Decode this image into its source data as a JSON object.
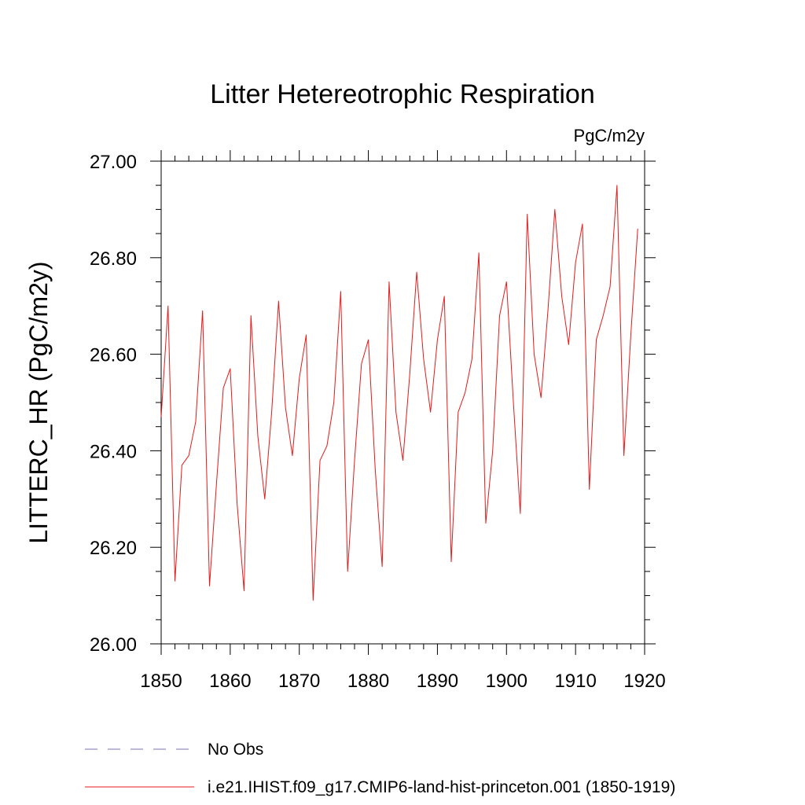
{
  "chart_data": {
    "type": "line",
    "title": "Litter Hetereotrophic Respiration",
    "units_label": "PgC/m2y",
    "ylabel": "LITTERC_HR  (PgC/m2y)",
    "xlabel": "",
    "xlim": [
      1850,
      1920
    ],
    "ylim": [
      26.0,
      27.0
    ],
    "x_ticks": [
      1850,
      1860,
      1870,
      1880,
      1890,
      1900,
      1910,
      1920
    ],
    "y_ticks": [
      "26.00",
      "26.20",
      "26.40",
      "26.60",
      "26.80",
      "27.00"
    ],
    "grid": false,
    "legend_position": "bottom-left",
    "series": [
      {
        "name": "No Obs",
        "color": "#7b70b0",
        "style": "dashed",
        "x": [],
        "y": []
      },
      {
        "name": "i.e21.IHIST.f09_g17.CMIP6-land-hist-princeton.001 (1850-1919)",
        "color": "#e41a1c",
        "style": "solid",
        "x": [
          1850,
          1851,
          1852,
          1853,
          1854,
          1855,
          1856,
          1857,
          1858,
          1859,
          1860,
          1861,
          1862,
          1863,
          1864,
          1865,
          1866,
          1867,
          1868,
          1869,
          1870,
          1871,
          1872,
          1873,
          1874,
          1875,
          1876,
          1877,
          1878,
          1879,
          1880,
          1881,
          1882,
          1883,
          1884,
          1885,
          1886,
          1887,
          1888,
          1889,
          1890,
          1891,
          1892,
          1893,
          1894,
          1895,
          1896,
          1897,
          1898,
          1899,
          1900,
          1901,
          1902,
          1903,
          1904,
          1905,
          1906,
          1907,
          1908,
          1909,
          1910,
          1911,
          1912,
          1913,
          1914,
          1915,
          1916,
          1917,
          1918,
          1919
        ],
        "y": [
          26.47,
          26.7,
          26.13,
          26.37,
          26.39,
          26.46,
          26.69,
          26.12,
          26.33,
          26.53,
          26.57,
          26.29,
          26.11,
          26.68,
          26.43,
          26.3,
          26.48,
          26.71,
          26.49,
          26.39,
          26.55,
          26.64,
          26.09,
          26.38,
          26.41,
          26.5,
          26.73,
          26.15,
          26.38,
          26.58,
          26.63,
          26.36,
          26.16,
          26.75,
          26.48,
          26.38,
          26.56,
          26.77,
          26.59,
          26.48,
          26.63,
          26.72,
          26.17,
          26.48,
          26.52,
          26.59,
          26.81,
          26.25,
          26.4,
          26.68,
          26.75,
          26.5,
          26.27,
          26.89,
          26.6,
          26.51,
          26.69,
          26.9,
          26.72,
          26.62,
          26.79,
          26.87,
          26.32,
          26.63,
          26.68,
          26.74,
          26.95,
          26.39,
          26.64,
          26.86
        ]
      }
    ]
  }
}
